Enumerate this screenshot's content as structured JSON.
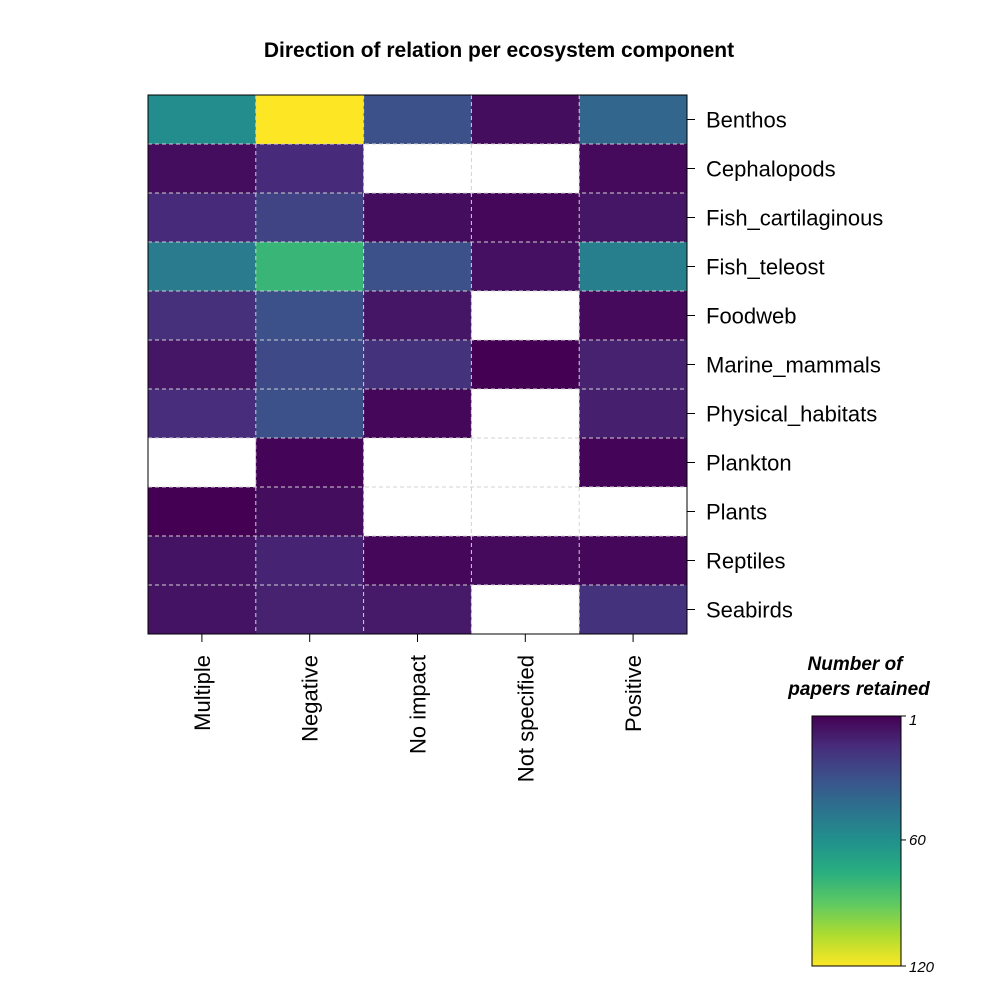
{
  "chart_data": {
    "type": "heatmap",
    "title": "Direction of relation per ecosystem component",
    "columns": [
      "Multiple",
      "Negative",
      "No impact",
      "Not specified",
      "Positive"
    ],
    "rows": [
      "Benthos",
      "Cephalopods",
      "Fish_cartilaginous",
      "Fish_teleost",
      "Foodweb",
      "Marine_mammals",
      "Physical_habitats",
      "Plankton",
      "Plants",
      "Reptiles",
      "Seabirds"
    ],
    "values": [
      [
        58,
        120,
        30,
        5,
        40
      ],
      [
        5,
        15,
        null,
        null,
        4
      ],
      [
        15,
        25,
        5,
        3,
        8
      ],
      [
        50,
        80,
        30,
        6,
        52
      ],
      [
        17,
        30,
        8,
        null,
        4
      ],
      [
        8,
        27,
        18,
        1,
        12
      ],
      [
        16,
        30,
        3,
        null,
        11
      ],
      [
        null,
        2,
        null,
        null,
        2
      ],
      [
        1,
        5,
        null,
        null,
        null
      ],
      [
        7,
        13,
        3,
        4,
        3
      ],
      [
        7,
        12,
        9,
        null,
        18
      ]
    ],
    "colorbar": {
      "title_line1": "Number of",
      "title_line2": "papers retained",
      "min": 1,
      "max": 120,
      "ticks": [
        "1",
        "60",
        "120"
      ],
      "tick_values": [
        1,
        60,
        120
      ],
      "colors": [
        "#440154",
        "#472d7b",
        "#3b528b",
        "#2c728e",
        "#21918c",
        "#28ae80",
        "#5ec962",
        "#addc30",
        "#fde725"
      ]
    },
    "grid": true,
    "empty_color": "#ffffff"
  }
}
